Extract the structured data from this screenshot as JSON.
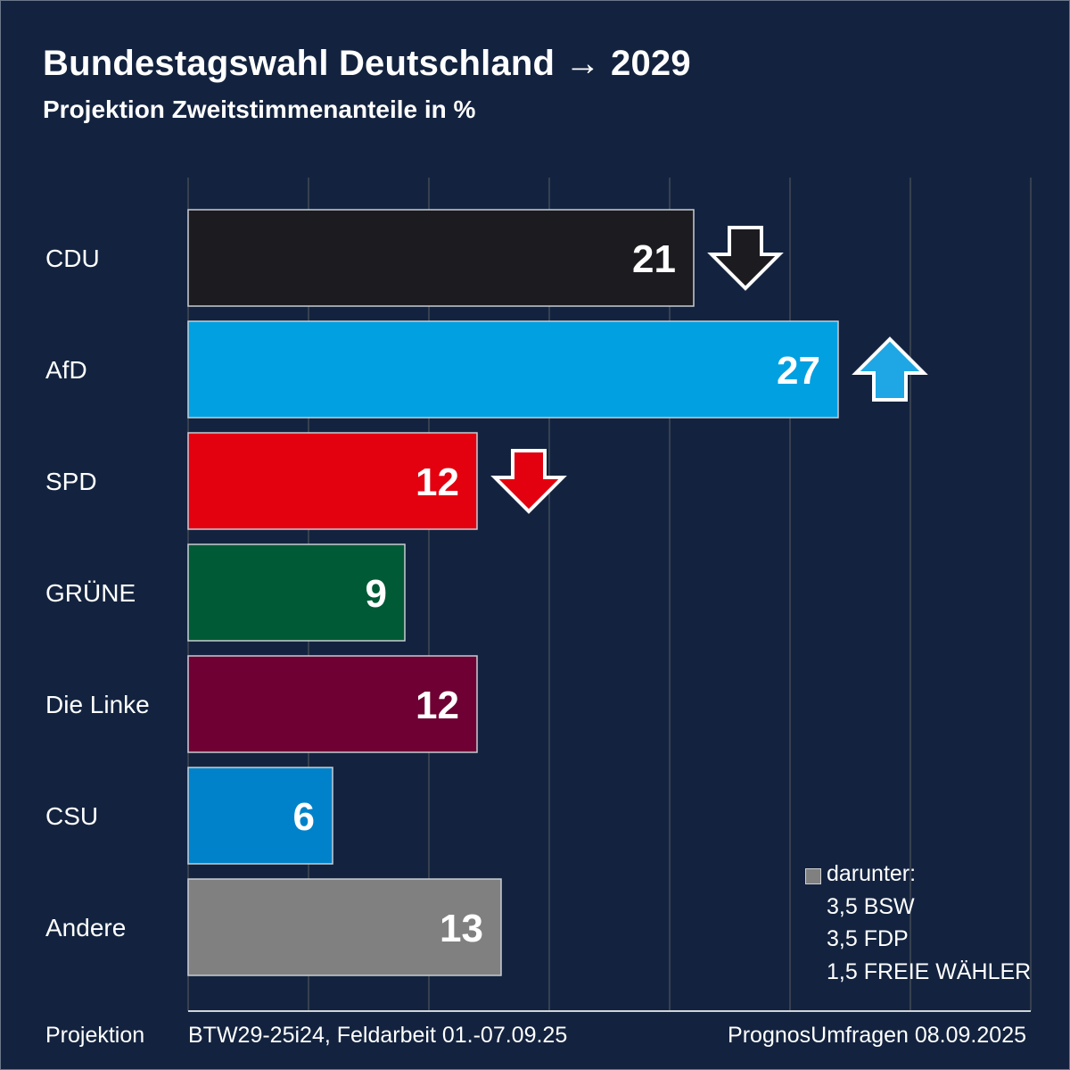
{
  "header": {
    "title": "Bundestagswahl Deutschland → 2029",
    "subtitle": "Projektion Zweitstimmenanteile in %"
  },
  "chart_data": {
    "type": "bar",
    "orientation": "horizontal",
    "categories": [
      "CDU",
      "AfD",
      "SPD",
      "GRÜNE",
      "Die Linke",
      "CSU",
      "Andere"
    ],
    "values": [
      21,
      27,
      12,
      9,
      12,
      6,
      13
    ],
    "value_labels": [
      "21",
      "27",
      "12",
      "9",
      "12",
      "6",
      "13"
    ],
    "colors": [
      "#1c1c20",
      "#00a0e1",
      "#e3000f",
      "#005a35",
      "#6e0033",
      "#0082ca",
      "#808080"
    ],
    "trend": [
      "down",
      "up",
      "down",
      null,
      null,
      null,
      null
    ],
    "trend_colors": [
      "#1c1c20",
      "#1ea7e4",
      "#e3000f",
      null,
      null,
      null,
      null
    ],
    "xlim": [
      0,
      35
    ],
    "grid": true
  },
  "legend": {
    "label": "darunter:",
    "items": [
      "3,5 BSW",
      "3,5 FDP",
      "1,5 FREIE WÄHLER"
    ]
  },
  "footer": {
    "left": "Projektion",
    "center": "BTW29-25i24, Feldarbeit 01.-07.09.25",
    "right": "PrognosUmfragen 08.09.2025"
  },
  "colors": {
    "background": "#13233f",
    "gridline": "#36404f"
  }
}
